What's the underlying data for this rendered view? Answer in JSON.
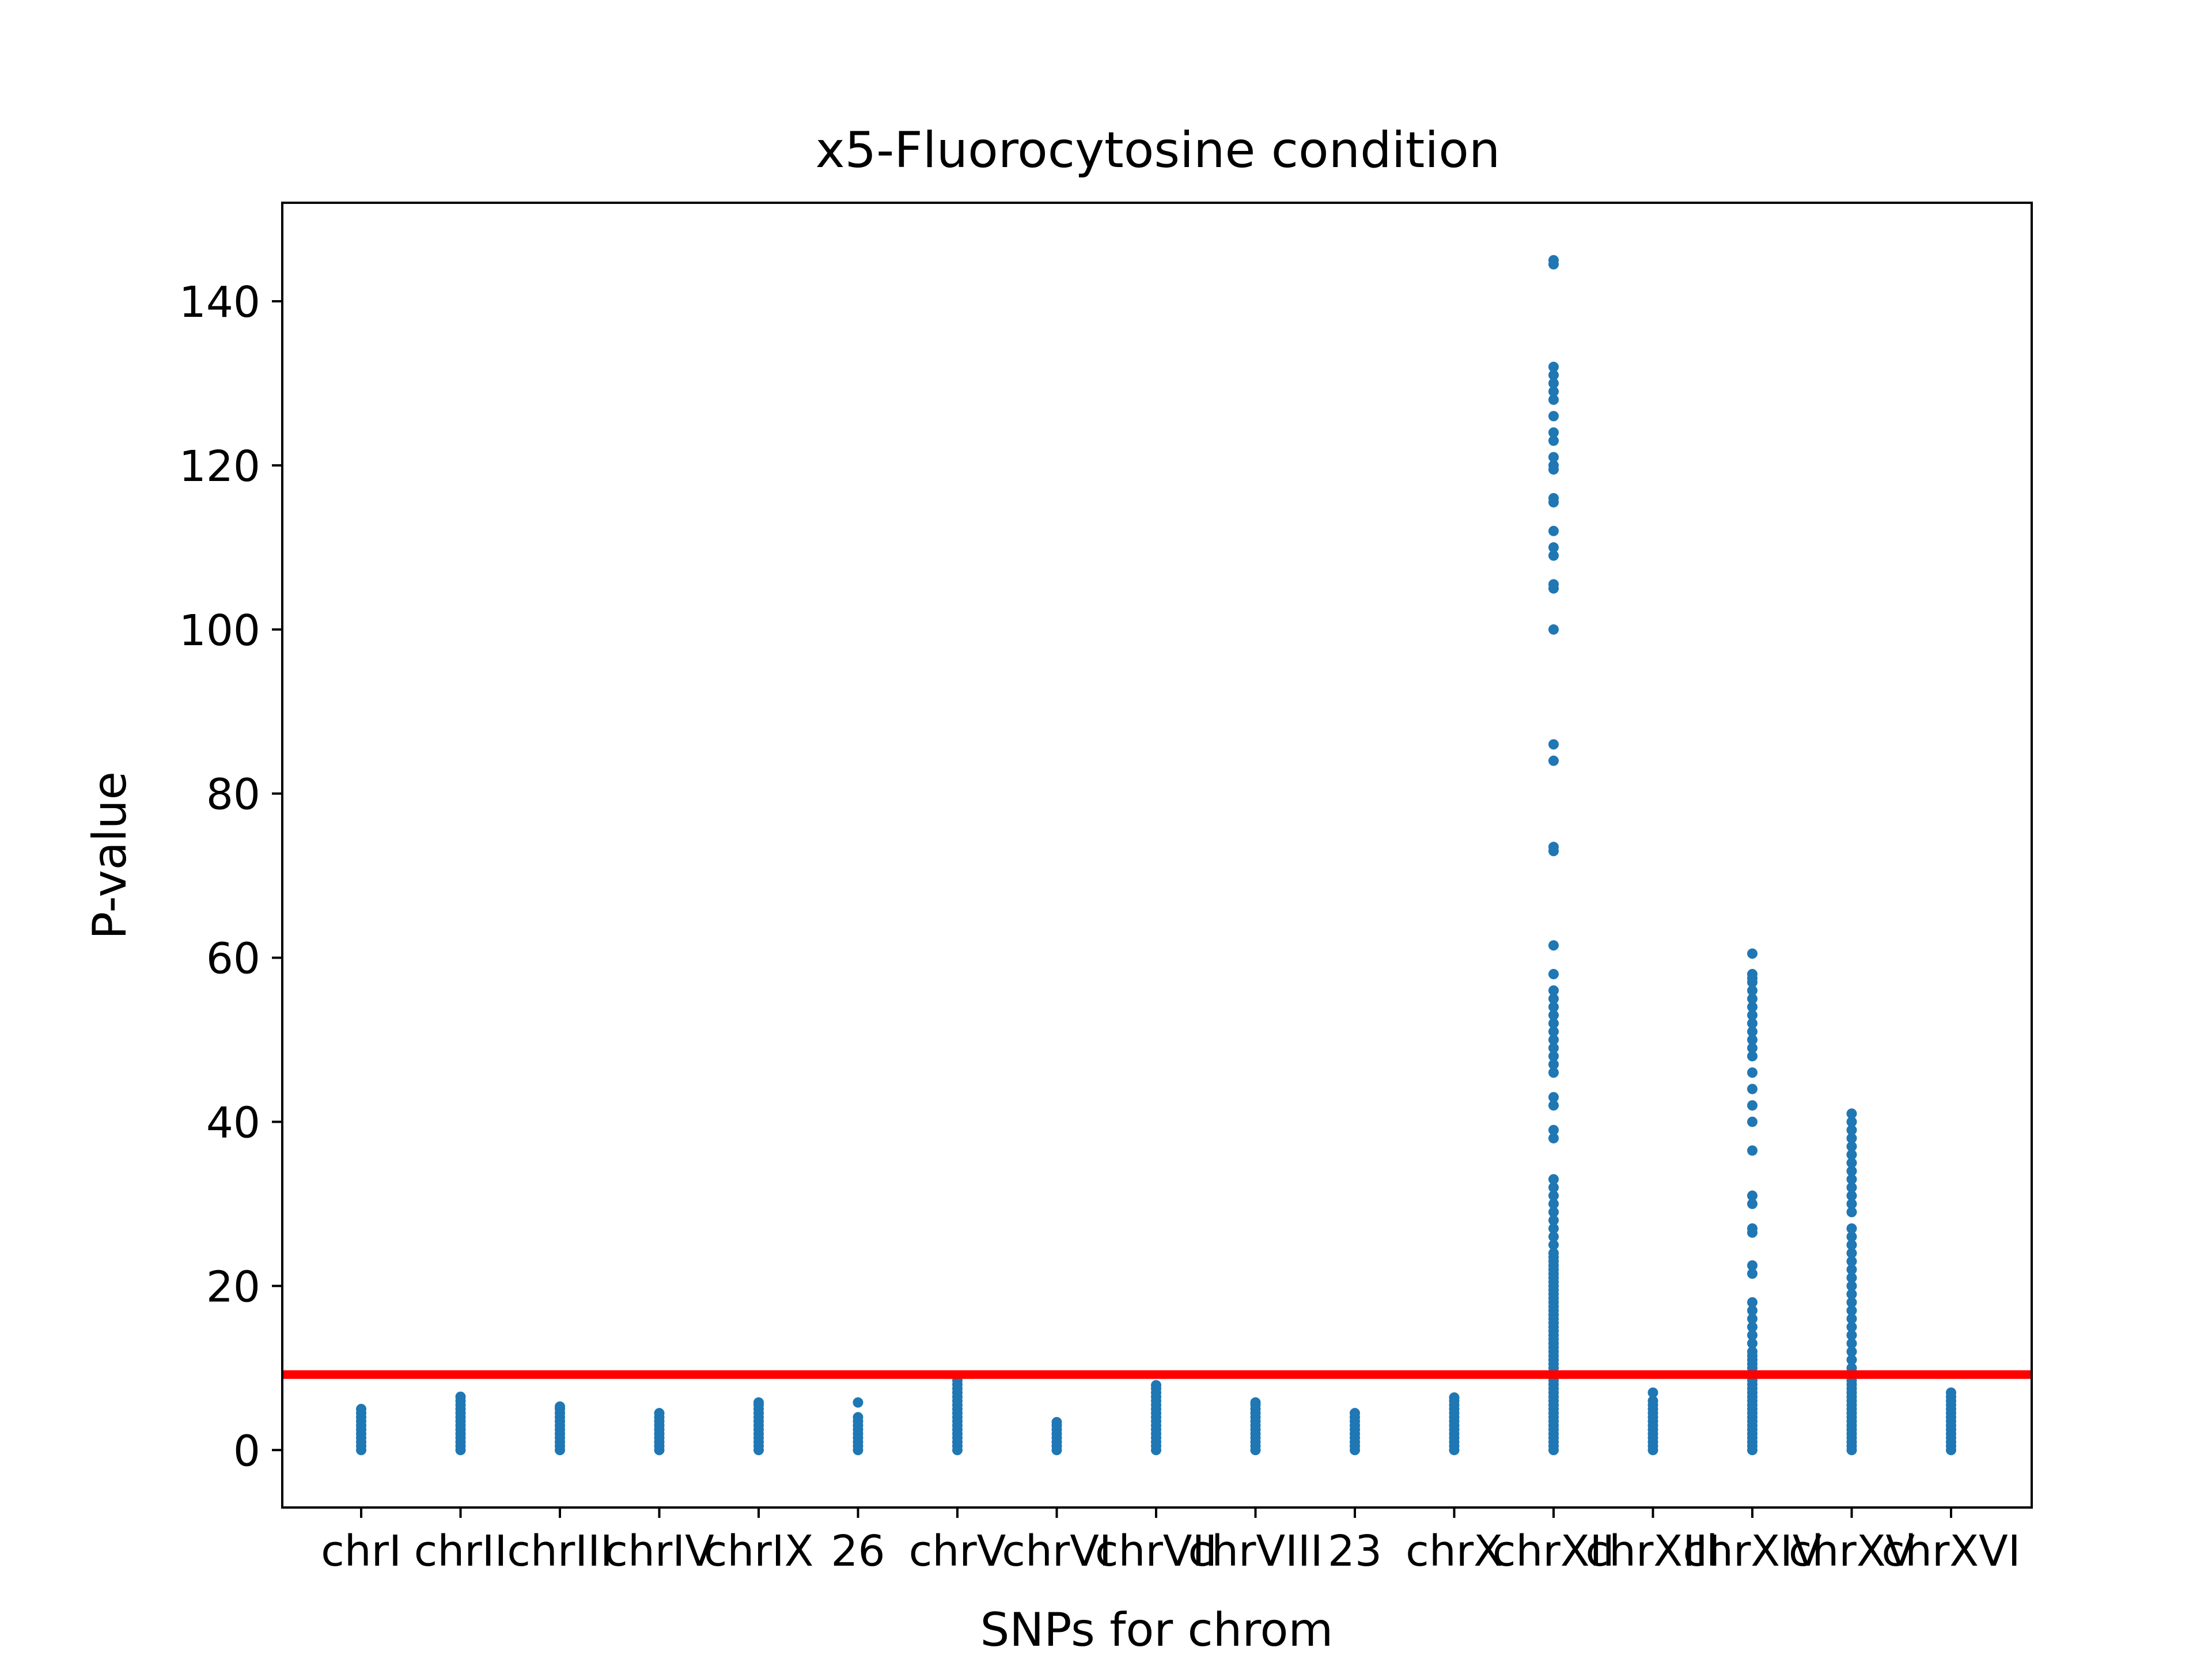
{
  "chart_data": {
    "type": "scatter",
    "title": "x5-Fluorocytosine condition",
    "xlabel": "SNPs for chrom",
    "ylabel": "P-value",
    "ylim": [
      -7,
      152
    ],
    "yticks": [
      0,
      20,
      40,
      60,
      80,
      100,
      120,
      140
    ],
    "categories": [
      "chrI",
      "chrII",
      "chrIII",
      "chrIV",
      "chrIX",
      "26",
      "chrV",
      "chrVI",
      "chrVII",
      "chrVIII",
      "23",
      "chrX",
      "chrXII",
      "chrXIII",
      "chrXIV",
      "chrXV",
      "chrXVI"
    ],
    "threshold": {
      "value": 9.2,
      "color": "#ff0000"
    },
    "marker_color": "#1f77b4",
    "grid": false,
    "series": [
      {
        "category": "chrI",
        "points": [
          0,
          0.5,
          1,
          1.5,
          2,
          2.5,
          3,
          3.5,
          4,
          4.5,
          5
        ]
      },
      {
        "category": "chrII",
        "points": [
          0,
          0.5,
          1,
          1.5,
          2,
          2.5,
          3,
          3.5,
          4,
          4.5,
          5,
          5.5,
          6,
          6.5
        ]
      },
      {
        "category": "chrIII",
        "points": [
          0,
          0.5,
          1,
          1.5,
          2,
          2.5,
          3,
          3.5,
          4,
          4.5,
          5,
          5.3
        ]
      },
      {
        "category": "chrIV",
        "points": [
          0,
          0.5,
          1,
          1.5,
          2,
          2.5,
          3,
          3.5,
          4,
          4.5
        ]
      },
      {
        "category": "chrIX",
        "points": [
          0,
          0.5,
          1,
          1.5,
          2,
          2.5,
          3,
          3.5,
          4,
          4.5,
          5,
          5.5,
          5.8
        ]
      },
      {
        "category": "26",
        "points": [
          0,
          0.5,
          1,
          1.5,
          2,
          2.5,
          3,
          3.5,
          4,
          5.8
        ]
      },
      {
        "category": "chrV",
        "points": [
          0,
          0.5,
          1,
          1.5,
          2,
          2.5,
          3,
          3.5,
          4,
          4.5,
          5,
          5.5,
          6,
          6.5,
          7,
          7.5,
          8,
          8.5,
          9
        ]
      },
      {
        "category": "chrVI",
        "points": [
          0,
          0.5,
          1,
          1.5,
          2,
          2.5,
          3,
          3.4
        ]
      },
      {
        "category": "chrVII",
        "points": [
          0,
          0.5,
          1,
          1.5,
          2,
          2.5,
          3,
          3.5,
          4,
          4.5,
          5,
          5.5,
          6,
          6.5,
          7,
          7.5,
          7.9
        ]
      },
      {
        "category": "chrVIII",
        "points": [
          0,
          0.5,
          1,
          1.5,
          2,
          2.5,
          3,
          3.5,
          4,
          4.5,
          5,
          5.5,
          5.8
        ]
      },
      {
        "category": "23",
        "points": [
          0,
          0.5,
          1,
          1.5,
          2,
          2.5,
          3,
          3.5,
          4,
          4.5
        ]
      },
      {
        "category": "chrX",
        "points": [
          0,
          0.5,
          1,
          1.5,
          2,
          2.5,
          3,
          3.5,
          4,
          4.5,
          5,
          5.5,
          6,
          6.4
        ]
      },
      {
        "category": "chrXII",
        "points": [
          0,
          0.5,
          1,
          1.5,
          2,
          2.5,
          3,
          3.5,
          4,
          4.5,
          5,
          5.5,
          6,
          6.5,
          7,
          7.5,
          8,
          8.5,
          9,
          9.5,
          10,
          10.5,
          11,
          11.5,
          12,
          12.5,
          13,
          13.5,
          14,
          14.5,
          15,
          15.5,
          16,
          16.5,
          17,
          17.5,
          18,
          18.5,
          19,
          19.5,
          20,
          20.5,
          21,
          21.5,
          22,
          22.5,
          23,
          23.5,
          24,
          25,
          26,
          27,
          28,
          29,
          30,
          31,
          32,
          33,
          38,
          39,
          42,
          43,
          46,
          47,
          48,
          49,
          50,
          51,
          52,
          53,
          54,
          55,
          56,
          58,
          61.5,
          73,
          73.5,
          84,
          86,
          100,
          105,
          105.5,
          109,
          110,
          112,
          115.5,
          116,
          119.5,
          120,
          121,
          123,
          124,
          126,
          128,
          129,
          130,
          131,
          132,
          144.5,
          145
        ]
      },
      {
        "category": "chrXIII",
        "points": [
          0,
          0.5,
          1,
          1.5,
          2,
          2.5,
          3,
          3.5,
          4,
          4.5,
          5,
          5.5,
          6,
          7
        ]
      },
      {
        "category": "chrXIV",
        "points": [
          0,
          0.5,
          1,
          1.5,
          2,
          2.5,
          3,
          3.5,
          4,
          4.5,
          5,
          5.5,
          6,
          6.5,
          7,
          7.5,
          8,
          8.5,
          9,
          9.5,
          10,
          10.5,
          11,
          11.5,
          12,
          13,
          14,
          15,
          16,
          17,
          18,
          21.5,
          22.5,
          26.5,
          27,
          30,
          31,
          36.5,
          40,
          42,
          44,
          46,
          48,
          49,
          50,
          51,
          52,
          53,
          54,
          55,
          56,
          57,
          57.5,
          58,
          60.5
        ]
      },
      {
        "category": "chrXV",
        "points": [
          0,
          0.5,
          1,
          1.5,
          2,
          2.5,
          3,
          3.5,
          4,
          4.5,
          5,
          5.5,
          6,
          6.5,
          7,
          7.5,
          8,
          8.5,
          9,
          9.5,
          10,
          11,
          12,
          13,
          14,
          15,
          16,
          17,
          18,
          19,
          20,
          21,
          22,
          23,
          24,
          25,
          26,
          27,
          29,
          30,
          31,
          32,
          33,
          34,
          35,
          36,
          37,
          38,
          39,
          40,
          41
        ]
      },
      {
        "category": "chrXVI",
        "points": [
          0,
          0.5,
          1,
          1.5,
          2,
          2.5,
          3,
          3.5,
          4,
          4.5,
          5,
          5.5,
          6,
          6.5,
          7
        ]
      }
    ]
  }
}
